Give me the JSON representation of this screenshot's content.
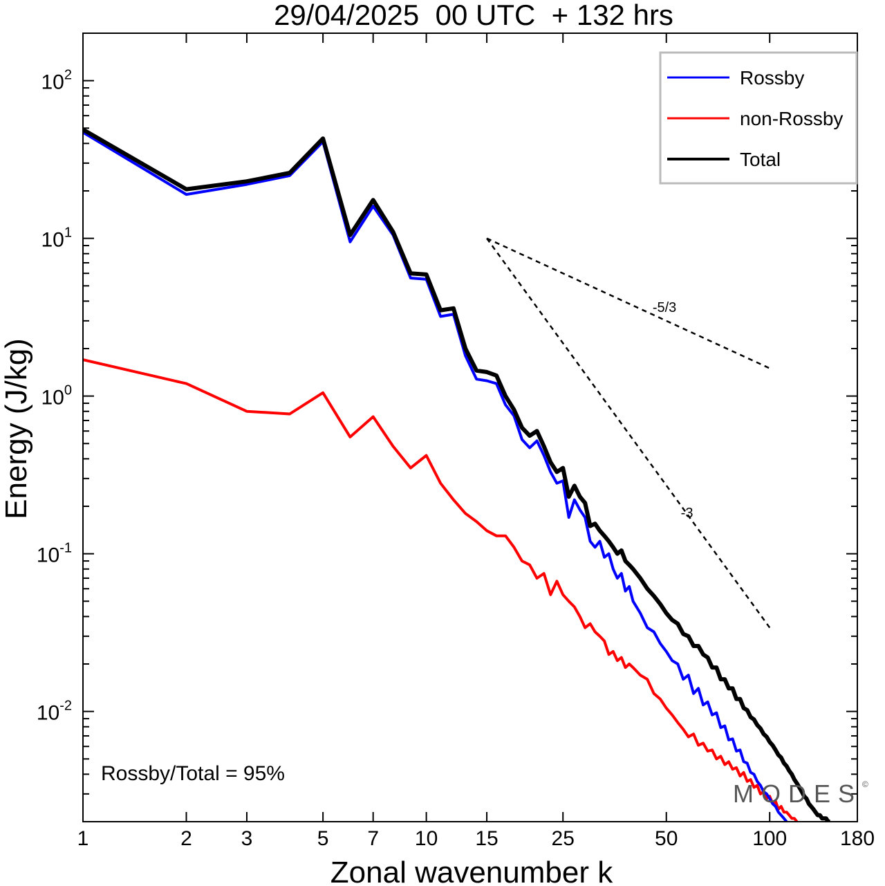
{
  "chart_data": {
    "type": "line",
    "title": "29/04/2025  00 UTC  + 132 hrs",
    "xlabel": "Zonal wavenumber k",
    "ylabel": "Energy (J/kg)",
    "xscale": "log",
    "yscale": "log",
    "xlim": [
      1,
      180
    ],
    "ylim": [
      0.002,
      200
    ],
    "x_ticks": [
      1,
      2,
      3,
      5,
      7,
      10,
      15,
      25,
      50,
      100,
      180
    ],
    "y_ticks": [
      {
        "value": 100,
        "base": "10",
        "exp": "2"
      },
      {
        "value": 10,
        "base": "10",
        "exp": "1"
      },
      {
        "value": 1,
        "base": "10",
        "exp": "0"
      },
      {
        "value": 0.1,
        "base": "10",
        "exp": "-1"
      },
      {
        "value": 0.01,
        "base": "10",
        "exp": "-2"
      }
    ],
    "legend_position": "top-right",
    "annotation": "Rossby/Total = 95%",
    "watermark": "MODES",
    "watermark_mark": "©",
    "reference_slopes": [
      {
        "label": "-5/3",
        "x": [
          15,
          100
        ],
        "y": [
          10,
          1.5
        ]
      },
      {
        "label": "-3",
        "x": [
          15,
          100
        ],
        "y": [
          10,
          0.034
        ]
      }
    ],
    "series": [
      {
        "name": "Rossby",
        "color": "#0000ff",
        "x": [
          1,
          2,
          3,
          4,
          5,
          6,
          7,
          8,
          9,
          10,
          11,
          12,
          13,
          14,
          15,
          16,
          17,
          18,
          19,
          20,
          21,
          22,
          23,
          24,
          25,
          26,
          27,
          28,
          29,
          30,
          31,
          32,
          33,
          34,
          35,
          36,
          37,
          38,
          39,
          40,
          42,
          44,
          46,
          48,
          50,
          52,
          54,
          56,
          58,
          60,
          62,
          64,
          66,
          68,
          70,
          72,
          74,
          76,
          78,
          80,
          82,
          84,
          86,
          88,
          90,
          92,
          94,
          96,
          98,
          100,
          102,
          104,
          106,
          108,
          110,
          112
        ],
        "y": [
          47,
          19,
          22,
          25,
          41,
          9.5,
          16,
          10.5,
          5.6,
          5.5,
          3.2,
          3.3,
          1.8,
          1.28,
          1.25,
          1.2,
          0.88,
          0.75,
          0.53,
          0.47,
          0.52,
          0.42,
          0.33,
          0.28,
          0.29,
          0.17,
          0.22,
          0.19,
          0.17,
          0.12,
          0.11,
          0.12,
          0.095,
          0.1,
          0.08,
          0.07,
          0.075,
          0.058,
          0.062,
          0.05,
          0.042,
          0.034,
          0.032,
          0.027,
          0.024,
          0.021,
          0.02,
          0.016,
          0.017,
          0.013,
          0.014,
          0.011,
          0.0115,
          0.0095,
          0.0098,
          0.0079,
          0.0081,
          0.0066,
          0.0067,
          0.0056,
          0.0057,
          0.0048,
          0.0047,
          0.0041,
          0.004,
          0.0036,
          0.0034,
          0.0031,
          0.003,
          0.0028,
          0.0026,
          0.0025,
          0.0023,
          0.0022,
          0.0021,
          0.002
        ]
      },
      {
        "name": "non-Rossby",
        "color": "#ff0000",
        "x": [
          1,
          2,
          3,
          4,
          5,
          6,
          7,
          8,
          9,
          10,
          11,
          12,
          13,
          14,
          15,
          16,
          17,
          18,
          19,
          20,
          21,
          22,
          23,
          24,
          25,
          26,
          27,
          28,
          29,
          30,
          31,
          32,
          33,
          34,
          35,
          36,
          37,
          38,
          39,
          40,
          42,
          44,
          46,
          48,
          50,
          52,
          54,
          56,
          58,
          60,
          62,
          64,
          66,
          68,
          70,
          72,
          74,
          76,
          78,
          80,
          82,
          84,
          86,
          88,
          90,
          92,
          94,
          96,
          98,
          100,
          102,
          104,
          106,
          108,
          110,
          112,
          114,
          116,
          118,
          120
        ],
        "y": [
          1.7,
          1.2,
          0.8,
          0.77,
          1.05,
          0.55,
          0.74,
          0.48,
          0.35,
          0.42,
          0.28,
          0.22,
          0.18,
          0.16,
          0.14,
          0.13,
          0.13,
          0.11,
          0.09,
          0.085,
          0.07,
          0.075,
          0.055,
          0.067,
          0.055,
          0.05,
          0.046,
          0.04,
          0.034,
          0.036,
          0.032,
          0.03,
          0.028,
          0.023,
          0.024,
          0.021,
          0.022,
          0.019,
          0.02,
          0.019,
          0.017,
          0.016,
          0.013,
          0.012,
          0.0105,
          0.0095,
          0.0085,
          0.0077,
          0.0069,
          0.0072,
          0.0061,
          0.0063,
          0.0056,
          0.0057,
          0.005,
          0.0052,
          0.0046,
          0.0048,
          0.0043,
          0.0044,
          0.0039,
          0.0041,
          0.0036,
          0.0037,
          0.0033,
          0.0034,
          0.003,
          0.0031,
          0.0028,
          0.0029,
          0.0026,
          0.0027,
          0.0024,
          0.0025,
          0.0023,
          0.0023,
          0.0022,
          0.0021,
          0.0021,
          0.002
        ]
      },
      {
        "name": "Total",
        "color": "#000000",
        "x": [
          1,
          2,
          3,
          4,
          5,
          6,
          7,
          8,
          9,
          10,
          11,
          12,
          13,
          14,
          15,
          16,
          17,
          18,
          19,
          20,
          21,
          22,
          23,
          24,
          25,
          26,
          27,
          28,
          29,
          30,
          31,
          32,
          33,
          34,
          35,
          36,
          37,
          38,
          39,
          40,
          42,
          44,
          46,
          48,
          50,
          52,
          54,
          56,
          58,
          60,
          62,
          64,
          66,
          68,
          70,
          72,
          74,
          76,
          78,
          80,
          82,
          84,
          86,
          88,
          90,
          92,
          94,
          96,
          98,
          100,
          102,
          104,
          106,
          108,
          110,
          112,
          114,
          116,
          118,
          120,
          122,
          124,
          126,
          128,
          130,
          132,
          134,
          136,
          138,
          140,
          142,
          144,
          146,
          148,
          150
        ],
        "y": [
          49,
          20.5,
          23,
          26,
          43,
          10.5,
          17.5,
          11,
          6,
          5.9,
          3.5,
          3.6,
          2,
          1.45,
          1.42,
          1.35,
          1,
          0.82,
          0.63,
          0.56,
          0.6,
          0.48,
          0.38,
          0.33,
          0.35,
          0.23,
          0.27,
          0.23,
          0.21,
          0.15,
          0.155,
          0.14,
          0.13,
          0.12,
          0.11,
          0.1,
          0.105,
          0.09,
          0.085,
          0.08,
          0.07,
          0.06,
          0.054,
          0.048,
          0.042,
          0.038,
          0.036,
          0.031,
          0.03,
          0.026,
          0.026,
          0.023,
          0.022,
          0.019,
          0.019,
          0.016,
          0.016,
          0.014,
          0.014,
          0.012,
          0.012,
          0.0105,
          0.0102,
          0.0092,
          0.0089,
          0.0082,
          0.0078,
          0.0072,
          0.0069,
          0.0064,
          0.0061,
          0.0057,
          0.0053,
          0.0051,
          0.0047,
          0.0045,
          0.0042,
          0.004,
          0.0037,
          0.0035,
          0.0033,
          0.0031,
          0.0029,
          0.0028,
          0.0026,
          0.0025,
          0.0024,
          0.0023,
          0.0022,
          0.0022,
          0.0021,
          0.0021,
          0.0021,
          0.002,
          0.002
        ]
      }
    ]
  }
}
